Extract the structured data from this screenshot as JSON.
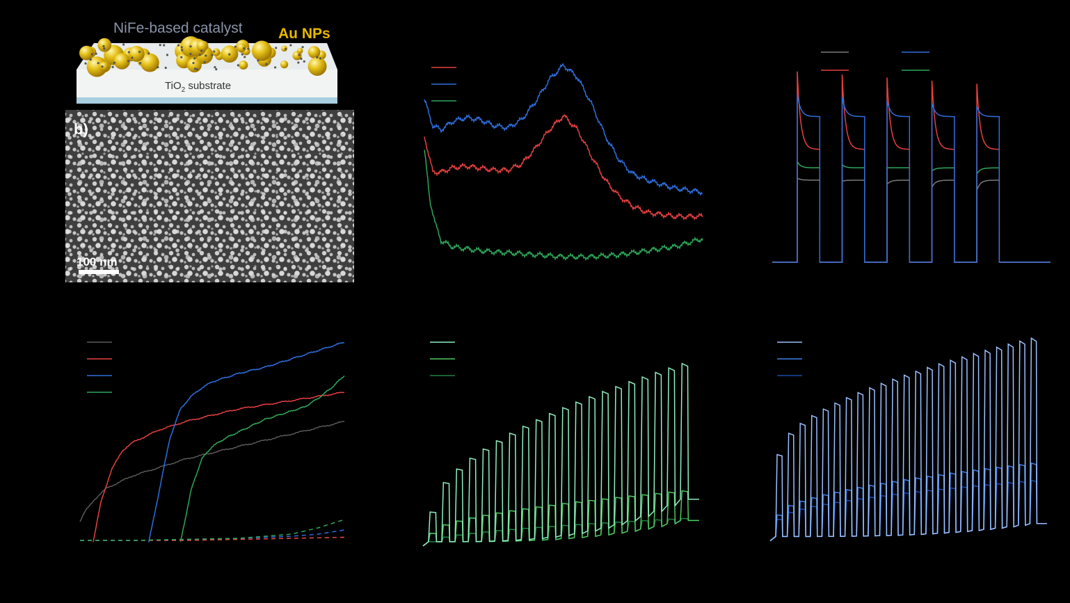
{
  "figure": {
    "schematic": {
      "catalyst_label": "NiFe-based catalyst",
      "np_label": "Au NPs",
      "substrate_label": "TiO",
      "substrate_sub": "2",
      "substrate_suffix": " substrate",
      "colors": {
        "catalyst_text": "#8a93a8",
        "np_text": "#e8b800",
        "np_fill": "#e6c21a",
        "substrate_top": "#eef1f1",
        "substrate_edge": "#a8cfe0"
      }
    },
    "sem": {
      "panel_label": "b)",
      "scale_bar_label": "100 nm"
    }
  },
  "chart_data": [
    {
      "id": "c",
      "type": "line",
      "title": "",
      "xlabel": "",
      "ylabel": "",
      "x_range": [
        0,
        100
      ],
      "y_range": [
        0,
        100
      ],
      "grid": false,
      "legend": {
        "placement": "top-left",
        "entries": [
          "",
          "",
          ""
        ]
      },
      "series": [
        {
          "color": "#2f6fe0",
          "x": [
            0,
            3,
            6,
            10,
            15,
            20,
            25,
            30,
            35,
            40,
            45,
            50,
            55,
            60,
            65,
            70,
            75,
            80,
            85,
            90,
            95,
            100
          ],
          "y": [
            80,
            67,
            65,
            69,
            71,
            70,
            67,
            66,
            70,
            79,
            90,
            97,
            91,
            78,
            62,
            50,
            43,
            40,
            38,
            36,
            35,
            34
          ]
        },
        {
          "color": "#e84040",
          "x": [
            0,
            3,
            6,
            10,
            15,
            20,
            25,
            30,
            35,
            40,
            45,
            50,
            55,
            60,
            65,
            70,
            75,
            80,
            85,
            90,
            95,
            100
          ],
          "y": [
            62,
            44,
            44,
            46,
            47,
            46,
            45,
            45,
            48,
            56,
            65,
            72,
            65,
            52,
            40,
            32,
            27,
            24,
            23,
            22,
            22,
            22
          ]
        },
        {
          "color": "#2ea85a",
          "x": [
            0,
            2,
            4,
            6,
            10,
            15,
            20,
            30,
            40,
            50,
            60,
            70,
            80,
            90,
            95,
            100
          ],
          "y": [
            55,
            30,
            18,
            10,
            7,
            6,
            5,
            4,
            3,
            2,
            2,
            3,
            5,
            7,
            9,
            11
          ]
        }
      ]
    },
    {
      "id": "d",
      "type": "line",
      "title": "",
      "xlabel": "",
      "ylabel": "",
      "x_range": [
        0,
        100
      ],
      "y_range": [
        0,
        100
      ],
      "grid": false,
      "legend": {
        "placement": "top-left",
        "entries": [
          "",
          "",
          "",
          ""
        ]
      },
      "cycles": 5,
      "series": [
        {
          "color": "#2f6fe0",
          "peak": 83,
          "plateau": 72
        },
        {
          "color": "#e84040",
          "peak": 94,
          "plateau": 56
        },
        {
          "color": "#2ea85a",
          "peak": 50,
          "plateau": 47
        },
        {
          "color": "#7a7a7a",
          "peak": 42,
          "plateau": 41
        }
      ]
    },
    {
      "id": "e",
      "type": "line",
      "title": "",
      "xlabel": "",
      "ylabel": "",
      "x_range": [
        0,
        100
      ],
      "y_range": [
        0,
        100
      ],
      "grid": false,
      "legend": {
        "placement": "top-left",
        "entries": [
          "",
          "",
          "",
          ""
        ]
      },
      "series": [
        {
          "color": "#5a5a5a",
          "style": "solid",
          "x": [
            0,
            2,
            5,
            10,
            15,
            20,
            30,
            40,
            50,
            60,
            70,
            80,
            90,
            100
          ],
          "y": [
            10,
            15,
            20,
            26,
            29,
            32,
            36,
            40,
            43,
            46,
            49,
            52,
            55,
            58
          ]
        },
        {
          "color": "#e84040",
          "style": "solid",
          "x": [
            5,
            8,
            12,
            16,
            20,
            25,
            30,
            40,
            50,
            60,
            70,
            80,
            90,
            100
          ],
          "y": [
            0,
            20,
            35,
            44,
            48,
            51,
            54,
            58,
            61,
            64,
            66,
            68,
            70,
            72
          ]
        },
        {
          "color": "#2f6fe0",
          "style": "solid",
          "x": [
            26,
            30,
            34,
            38,
            42,
            46,
            50,
            60,
            70,
            80,
            90,
            100
          ],
          "y": [
            0,
            25,
            50,
            64,
            70,
            74,
            77,
            81,
            84,
            88,
            92,
            96
          ]
        },
        {
          "color": "#2ea85a",
          "style": "solid",
          "x": [
            38,
            42,
            46,
            50,
            55,
            60,
            65,
            70,
            75,
            80,
            85,
            90,
            95,
            100
          ],
          "y": [
            0,
            25,
            40,
            46,
            50,
            53,
            56,
            59,
            61,
            63,
            65,
            69,
            74,
            80
          ]
        },
        {
          "color": "#5a5a5a",
          "style": "dashed",
          "x": [
            0,
            20,
            40,
            60,
            80,
            100
          ],
          "y": [
            1,
            1,
            1,
            1.5,
            2,
            2.5
          ]
        },
        {
          "color": "#e84040",
          "style": "dashed",
          "x": [
            0,
            20,
            40,
            60,
            80,
            100
          ],
          "y": [
            1,
            1,
            1,
            1.5,
            2,
            2.5
          ]
        },
        {
          "color": "#2f6fe0",
          "style": "dashed",
          "x": [
            0,
            20,
            40,
            60,
            80,
            90,
            100
          ],
          "y": [
            1,
            1,
            1.5,
            2,
            3,
            4,
            6
          ]
        },
        {
          "color": "#2ea85a",
          "style": "dashed",
          "x": [
            0,
            20,
            40,
            60,
            80,
            90,
            100
          ],
          "y": [
            1,
            1,
            1.5,
            2,
            4,
            7,
            11
          ]
        }
      ]
    },
    {
      "id": "f",
      "type": "line",
      "title": "",
      "xlabel": "",
      "ylabel": "",
      "x_range": [
        0,
        100
      ],
      "y_range": [
        0,
        100
      ],
      "grid": false,
      "legend": {
        "placement": "top-left",
        "entries": [
          "",
          "",
          ""
        ]
      },
      "pulses": 20,
      "series": [
        {
          "color": "#8ff0c0",
          "base_start": 2,
          "base_end": 22,
          "peak_start": 16,
          "peak_end": 86
        },
        {
          "color": "#4fc860",
          "base_start": 2,
          "base_end": 12,
          "peak_start": 6,
          "peak_end": 26
        },
        {
          "color": "#23803f",
          "base_start": 2,
          "base_end": 12,
          "peak_start": 2,
          "peak_end": 13
        }
      ]
    },
    {
      "id": "g",
      "type": "line",
      "title": "",
      "xlabel": "",
      "ylabel": "",
      "x_range": [
        0,
        100
      ],
      "y_range": [
        0,
        100
      ],
      "grid": false,
      "legend": {
        "placement": "top-left",
        "entries": [
          "",
          "",
          ""
        ]
      },
      "pulses": 23,
      "series": [
        {
          "color": "#9cc0ff",
          "base_start": 6,
          "base_end": 12,
          "peak_start": 44,
          "peak_end": 98
        },
        {
          "color": "#3f80ea",
          "base_start": 6,
          "base_end": 12,
          "peak_start": 16,
          "peak_end": 40
        },
        {
          "color": "#1e4ba8",
          "base_start": 6,
          "base_end": 12,
          "peak_start": 14,
          "peak_end": 32
        }
      ]
    }
  ]
}
